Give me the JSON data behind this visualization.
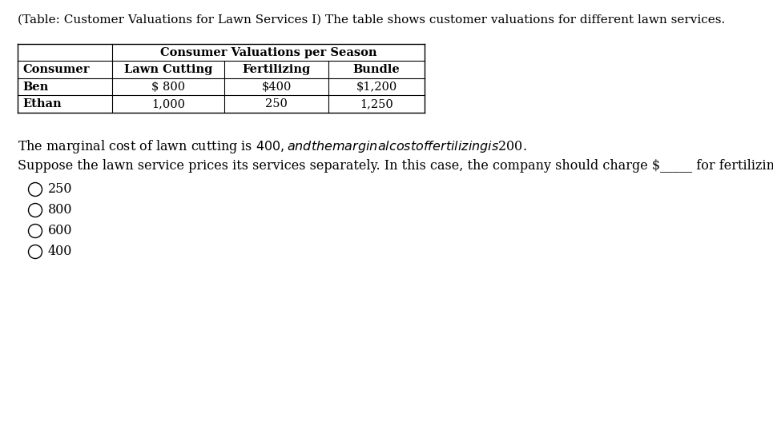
{
  "title_text": "(Table: Customer Valuations for Lawn Services I) The table shows customer valuations for different lawn services.",
  "table_header_top": "Consumer Valuations per Season",
  "table_cols": [
    "Consumer",
    "Lawn Cutting",
    "Fertilizing",
    "Bundle"
  ],
  "table_rows": [
    [
      "Ben",
      "$ 800",
      "$400",
      "$1,200"
    ],
    [
      "Ethan",
      "1,000",
      "250",
      "1,250"
    ]
  ],
  "paragraph1": "The marginal cost of lawn cutting is $400, and the marginal cost of fertilizing is $200.",
  "paragraph2": "Suppose the lawn service prices its services separately. In this case, the company should charge $_____ for fertilizing.",
  "options": [
    "250",
    "800",
    "600",
    "400"
  ],
  "bg_color": "#ffffff",
  "text_color": "#000000",
  "font_size_title": 11.0,
  "font_size_table": 10.5,
  "font_size_body": 11.5,
  "font_size_options": 11.5
}
